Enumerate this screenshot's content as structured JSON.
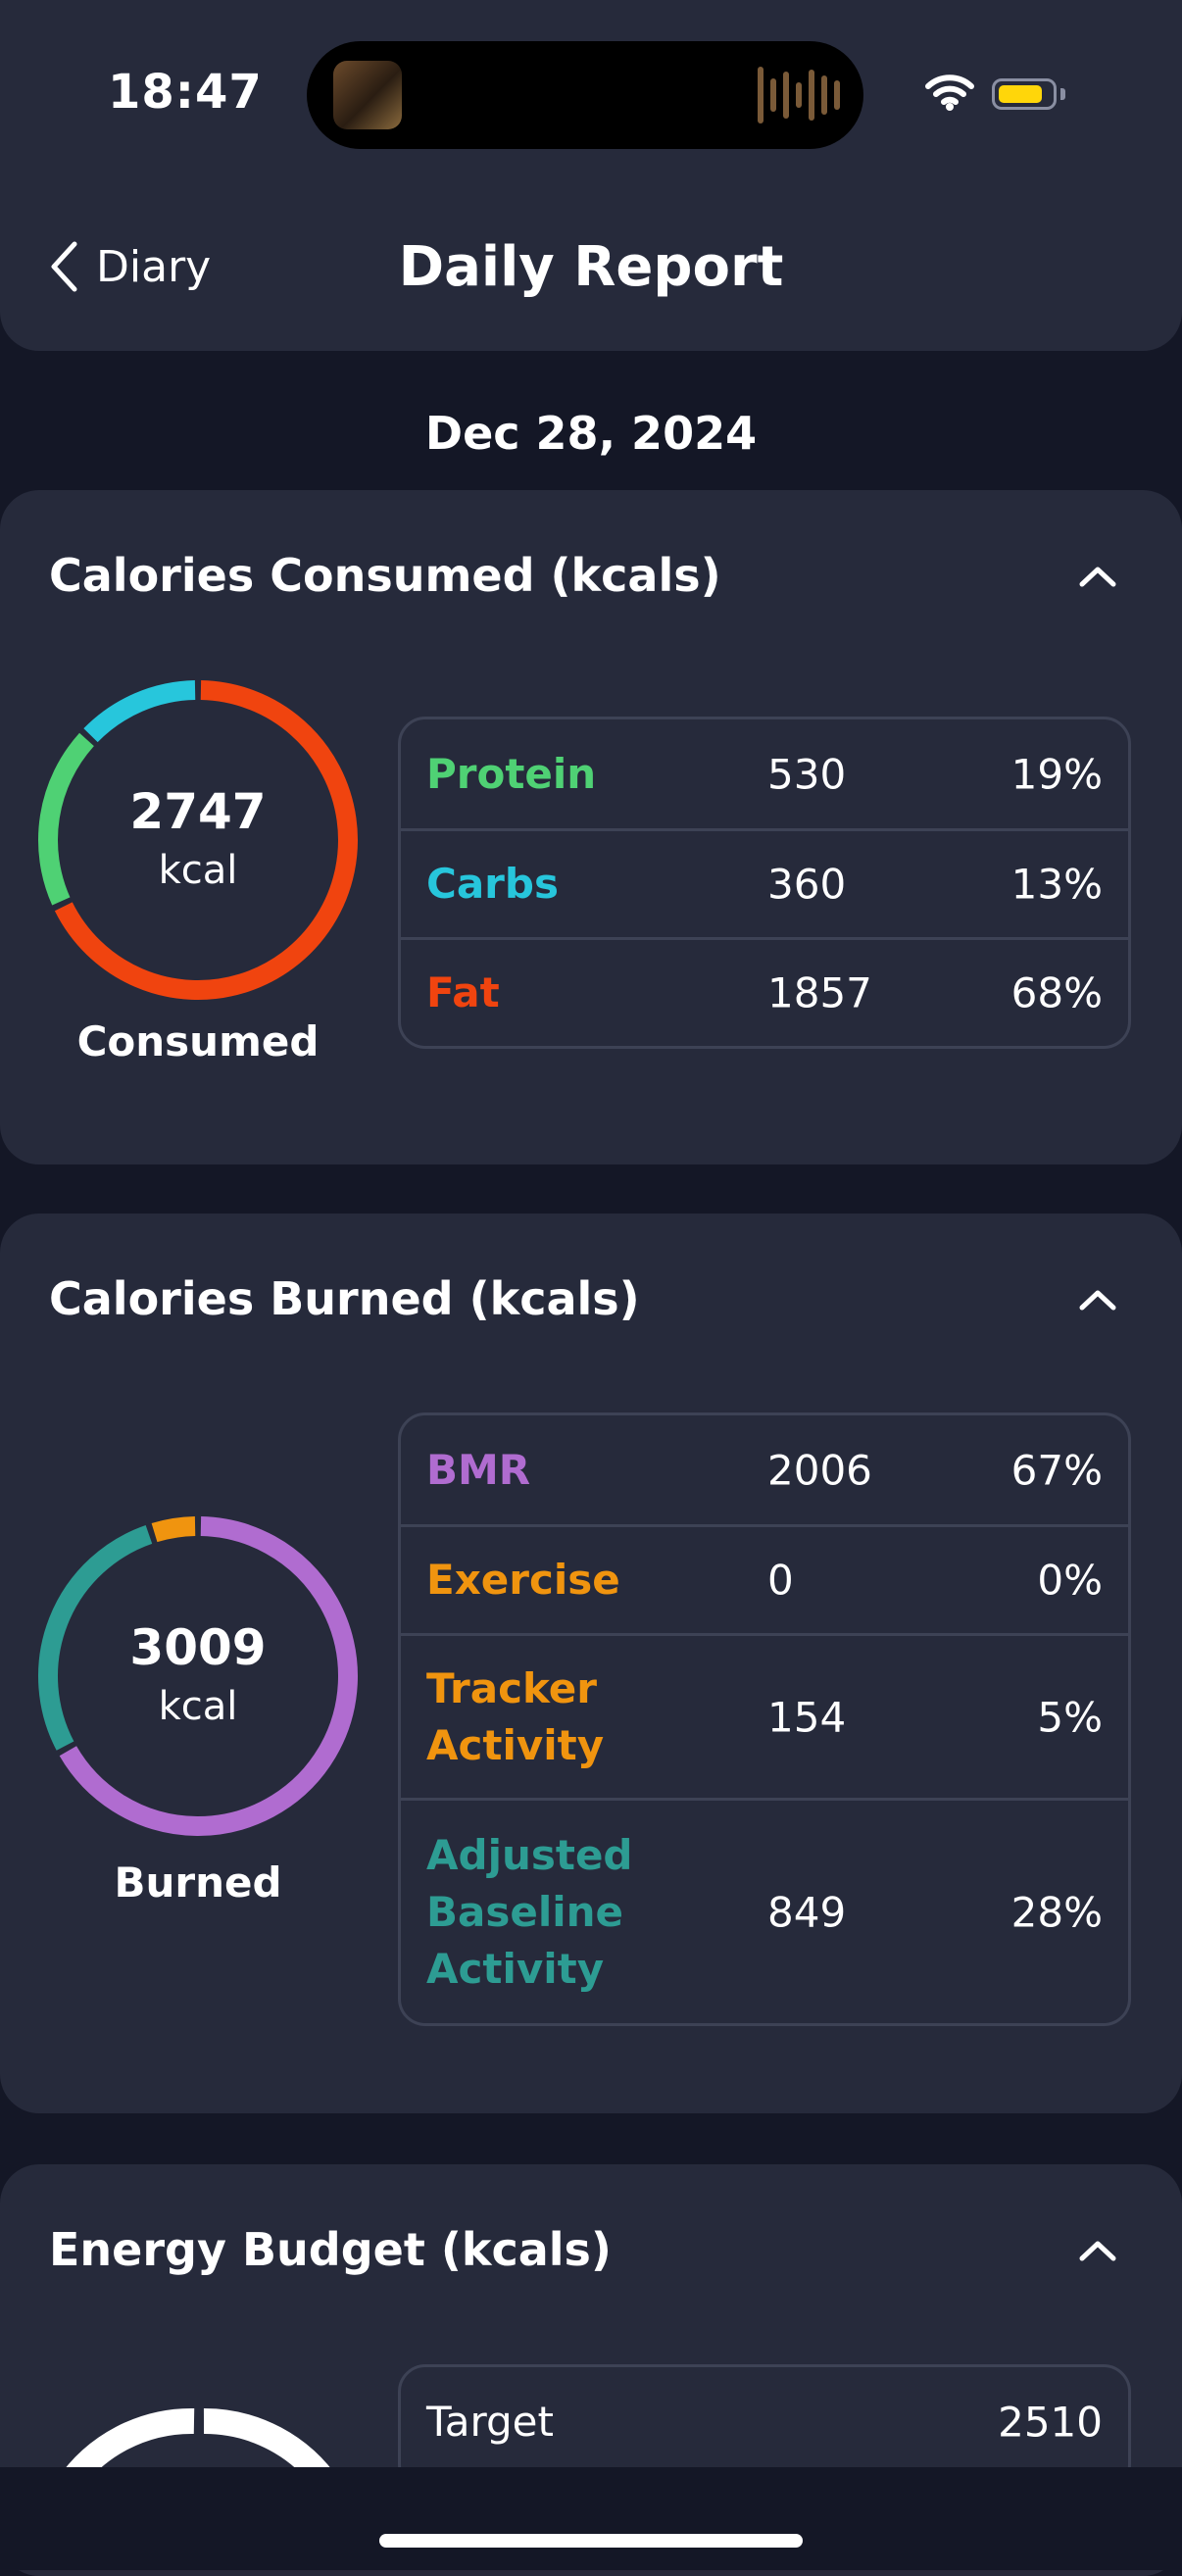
{
  "status_bar": {
    "time": "18:47"
  },
  "nav": {
    "back_label": "Diary",
    "title": "Daily Report"
  },
  "date": "Dec 28, 2024",
  "colors": {
    "protein": "#4fd174",
    "carbs": "#27c6dc",
    "fat": "#f0440f",
    "bmr": "#b06cd0",
    "exercise": "#f0940f",
    "tracker": "#f0940f",
    "adjusted": "#2d9c93"
  },
  "consumed": {
    "title": "Calories Consumed (kcals)",
    "value": "2747",
    "unit": "kcal",
    "caption": "Consumed",
    "rows": [
      {
        "label": "Protein",
        "value": "530",
        "percent": "19%",
        "color": "#4fd174",
        "share": 0.19
      },
      {
        "label": "Carbs",
        "value": "360",
        "percent": "13%",
        "color": "#27c6dc",
        "share": 0.13
      },
      {
        "label": "Fat",
        "value": "1857",
        "percent": "68%",
        "color": "#f0440f",
        "share": 0.68
      }
    ]
  },
  "burned": {
    "title": "Calories Burned (kcals)",
    "value": "3009",
    "unit": "kcal",
    "caption": "Burned",
    "rows": [
      {
        "label": "BMR",
        "value": "2006",
        "percent": "67%",
        "color": "#b06cd0",
        "share": 0.67
      },
      {
        "label": "Exercise",
        "value": "0",
        "percent": "0%",
        "color": "#f0940f",
        "share": 0.0
      },
      {
        "label": "Tracker Activity",
        "value": "154",
        "percent": "5%",
        "color": "#f0940f",
        "share": 0.05
      },
      {
        "label": "Adjusted Baseline Activity",
        "value": "849",
        "percent": "28%",
        "color": "#2d9c93",
        "share": 0.28
      }
    ]
  },
  "budget": {
    "title": "Energy Budget (kcals)",
    "rows": [
      {
        "label": "Target",
        "value": "2510"
      }
    ]
  }
}
